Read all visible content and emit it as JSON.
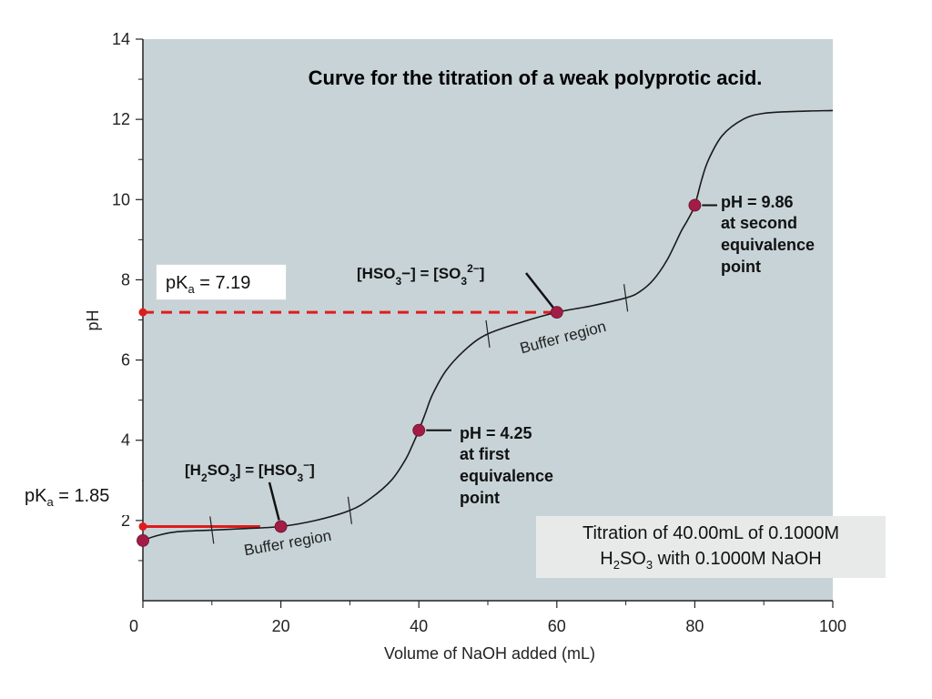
{
  "chart_data": {
    "type": "line",
    "title": "Curve for the titration of a weak polyprotic acid.",
    "xlabel": "Volume of NaOH added (mL)",
    "ylabel": "pH",
    "xlim": [
      0,
      100
    ],
    "ylim": [
      0,
      14
    ],
    "x_ticks": [
      0,
      20,
      40,
      60,
      80,
      100
    ],
    "y_ticks": [
      2,
      4,
      6,
      8,
      10,
      12,
      14
    ],
    "grid": false,
    "series": [
      {
        "x": [
          0,
          2,
          5,
          10,
          15,
          20,
          25,
          30,
          33,
          36,
          38,
          39,
          40,
          41,
          42,
          44,
          47,
          50,
          55,
          60,
          65,
          70,
          72,
          74,
          76,
          78,
          79,
          80,
          81,
          82,
          84,
          87,
          90,
          95,
          100
        ],
        "y": [
          1.5,
          1.62,
          1.72,
          1.76,
          1.8,
          1.85,
          2.0,
          2.25,
          2.55,
          3.0,
          3.5,
          3.85,
          4.25,
          4.7,
          5.15,
          5.75,
          6.3,
          6.65,
          6.95,
          7.19,
          7.35,
          7.55,
          7.7,
          8.0,
          8.5,
          9.2,
          9.5,
          9.86,
          10.5,
          11.0,
          11.6,
          12.0,
          12.15,
          12.2,
          12.22
        ]
      }
    ],
    "points": [
      {
        "x": 0,
        "y": 1.5
      },
      {
        "x": 20,
        "y": 1.85
      },
      {
        "x": 40,
        "y": 4.25
      },
      {
        "x": 60,
        "y": 7.19
      },
      {
        "x": 80,
        "y": 9.86
      }
    ],
    "pka_lines": [
      {
        "y": 7.19,
        "x_end": 60,
        "style": "dashed"
      },
      {
        "y": 1.85,
        "x_end": 17,
        "style": "solid"
      }
    ],
    "colors": {
      "plot_bg": "#c7d3d7",
      "curve": "#1a1a1a",
      "point": "#a31c45",
      "pka_line": "#e01b1b"
    }
  },
  "annotations": {
    "pka2_prefix": "pK",
    "pka2_sub": "a",
    "pka2_value": " = 7.19",
    "pka1_prefix": "pK",
    "pka1_sub": "a",
    "pka1_value": " = 1.85",
    "eq_second": [
      "pH = 9.86",
      "at second",
      "equivalence",
      "point"
    ],
    "eq_first": [
      "pH = 4.25",
      "at first",
      "equivalence",
      "point"
    ],
    "species_upper": {
      "p1": "[HSO",
      "s1": "3",
      "p2": "−] = [SO",
      "s2": "3",
      "sup": "2−",
      "p3": "]"
    },
    "species_lower": {
      "p1": "[H",
      "s1": "2",
      "p2": "SO",
      "s2": "3",
      "p3": "] = [HSO",
      "s3": "3",
      "sup": "−",
      "p4": "]"
    },
    "buffer_upper": "Buffer region",
    "buffer_lower": "Buffer region",
    "note_line1": "Titration of 40.00mL of 0.1000M",
    "note_line2_a": "H",
    "note_line2_sub1": "2",
    "note_line2_b": "SO",
    "note_line2_sub2": "3",
    "note_line2_c": " with 0.1000M NaOH"
  }
}
